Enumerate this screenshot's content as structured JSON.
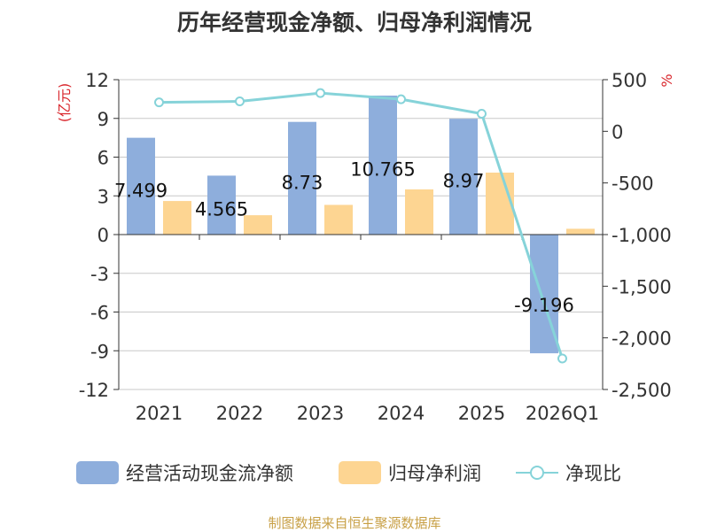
{
  "title": "历年经营现金净额、归母净利润情况",
  "footer": "制图数据来自恒生聚源数据库",
  "chart_data": {
    "type": "bar",
    "categories": [
      "2021",
      "2022",
      "2023",
      "2024",
      "2025",
      "2026Q1"
    ],
    "left_axis": {
      "label": "(亿元)",
      "min": -12,
      "max": 12,
      "ticks": [
        12,
        9,
        6,
        3,
        0,
        -3,
        -6,
        -9,
        -12
      ]
    },
    "right_axis": {
      "label": "%",
      "min": -2500,
      "max": 500,
      "ticks": [
        500,
        0,
        -500,
        -1000,
        -1500,
        -2000,
        -2500
      ],
      "tick_labels": [
        "500",
        "0",
        "-500",
        "-1,000",
        "-1,500",
        "-2,000",
        "-2,500"
      ]
    },
    "series": [
      {
        "name": "经营活动现金流净额",
        "type": "bar",
        "axis": "left",
        "color": "#8eaedc",
        "values": [
          7.499,
          4.565,
          8.73,
          10.765,
          8.97,
          -9.196
        ],
        "labels": [
          "7.499",
          "4.565",
          "8.73",
          "10.765",
          "8.97",
          "-9.196"
        ]
      },
      {
        "name": "归母净利润",
        "type": "bar",
        "axis": "left",
        "color": "#fdd592",
        "values": [
          2.6,
          1.5,
          2.3,
          3.5,
          4.8,
          0.45
        ]
      },
      {
        "name": "净现比",
        "type": "line",
        "axis": "right",
        "color": "#86d3d9",
        "values": [
          280,
          290,
          370,
          310,
          170,
          -2200
        ]
      }
    ],
    "grid": true,
    "legend_position": "bottom"
  }
}
